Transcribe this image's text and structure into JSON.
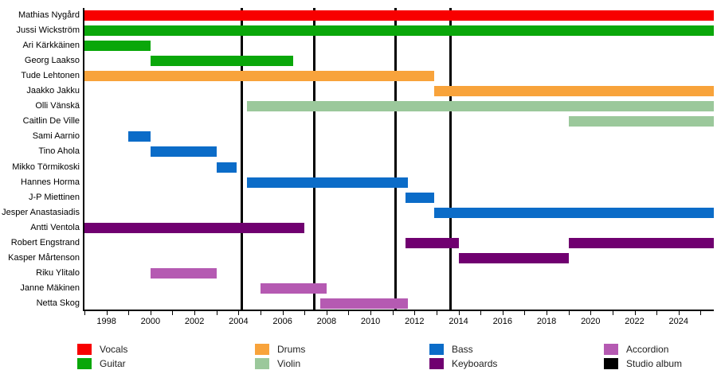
{
  "colors": {
    "vocals": "#f80000",
    "guitar": "#0aa70a",
    "drums": "#f8a33b",
    "violin": "#9bc89b",
    "bass": "#0b6cc8",
    "keyboards": "#700070",
    "accordion": "#b55ab2",
    "album": "#000000"
  },
  "chart_data": {
    "type": "timeline",
    "xlabel": "",
    "ylabel": "",
    "x_axis": {
      "min": 1997,
      "max": 2025.6,
      "minor_tick_interval": 1,
      "tick_label_start": 1998,
      "tick_label_end": 2024,
      "tick_label_interval": 2
    },
    "grid": false,
    "legend_position": "bottom",
    "members": [
      {
        "name": "Mathias Nygård",
        "segments": [
          {
            "role": "vocals",
            "start": 1997,
            "end": 2025.6
          }
        ]
      },
      {
        "name": "Jussi Wickström",
        "segments": [
          {
            "role": "guitar",
            "start": 1997,
            "end": 2025.6
          }
        ]
      },
      {
        "name": "Ari Kärkkäinen",
        "segments": [
          {
            "role": "guitar",
            "start": 1997,
            "end": 2000
          }
        ]
      },
      {
        "name": "Georg Laakso",
        "segments": [
          {
            "role": "guitar",
            "start": 2000,
            "end": 2006.5
          }
        ]
      },
      {
        "name": "Tude Lehtonen",
        "segments": [
          {
            "role": "drums",
            "start": 1997,
            "end": 2012.9
          }
        ]
      },
      {
        "name": "Jaakko Jakku",
        "segments": [
          {
            "role": "drums",
            "start": 2012.9,
            "end": 2025.6
          }
        ]
      },
      {
        "name": "Olli Vänskä",
        "segments": [
          {
            "role": "violin",
            "start": 2004.4,
            "end": 2025.6
          }
        ]
      },
      {
        "name": "Caitlin De Ville",
        "segments": [
          {
            "role": "violin",
            "start": 2019,
            "end": 2025.6
          }
        ]
      },
      {
        "name": "Sami Aarnio",
        "segments": [
          {
            "role": "bass",
            "start": 1999,
            "end": 2000
          }
        ]
      },
      {
        "name": "Tino Ahola",
        "segments": [
          {
            "role": "bass",
            "start": 2000,
            "end": 2003
          }
        ]
      },
      {
        "name": "Mikko Törmikoski",
        "segments": [
          {
            "role": "bass",
            "start": 2003,
            "end": 2003.9
          }
        ]
      },
      {
        "name": "Hannes Horma",
        "segments": [
          {
            "role": "bass",
            "start": 2004.4,
            "end": 2011.7
          }
        ]
      },
      {
        "name": "J-P Miettinen",
        "segments": [
          {
            "role": "bass",
            "start": 2011.6,
            "end": 2012.9
          }
        ]
      },
      {
        "name": "Jesper Anastasiadis",
        "segments": [
          {
            "role": "bass",
            "start": 2012.9,
            "end": 2025.6
          }
        ]
      },
      {
        "name": "Antti Ventola",
        "segments": [
          {
            "role": "keyboards",
            "start": 1997,
            "end": 2007
          }
        ]
      },
      {
        "name": "Robert Engstrand",
        "segments": [
          {
            "role": "keyboards",
            "start": 2011.6,
            "end": 2014
          },
          {
            "role": "keyboards",
            "start": 2019,
            "end": 2025.6
          }
        ]
      },
      {
        "name": "Kasper Mårtenson",
        "segments": [
          {
            "role": "keyboards",
            "start": 2014,
            "end": 2019
          }
        ]
      },
      {
        "name": "Riku Ylitalo",
        "segments": [
          {
            "role": "accordion",
            "start": 2000,
            "end": 2003
          }
        ]
      },
      {
        "name": "Janne Mäkinen",
        "segments": [
          {
            "role": "accordion",
            "start": 2005,
            "end": 2008
          }
        ]
      },
      {
        "name": "Netta Skog",
        "segments": [
          {
            "role": "accordion",
            "start": 2007.7,
            "end": 2011.7
          }
        ]
      }
    ],
    "album_lines": [
      2004.15,
      2007.45,
      2011.15,
      2013.65
    ],
    "legend": [
      {
        "label": "Vocals",
        "role": "vocals"
      },
      {
        "label": "Guitar",
        "role": "guitar"
      },
      {
        "label": "Drums",
        "role": "drums"
      },
      {
        "label": "Violin",
        "role": "violin"
      },
      {
        "label": "Bass",
        "role": "bass"
      },
      {
        "label": "Keyboards",
        "role": "keyboards"
      },
      {
        "label": "Accordion",
        "role": "accordion"
      },
      {
        "label": "Studio album",
        "role": "album"
      }
    ]
  }
}
